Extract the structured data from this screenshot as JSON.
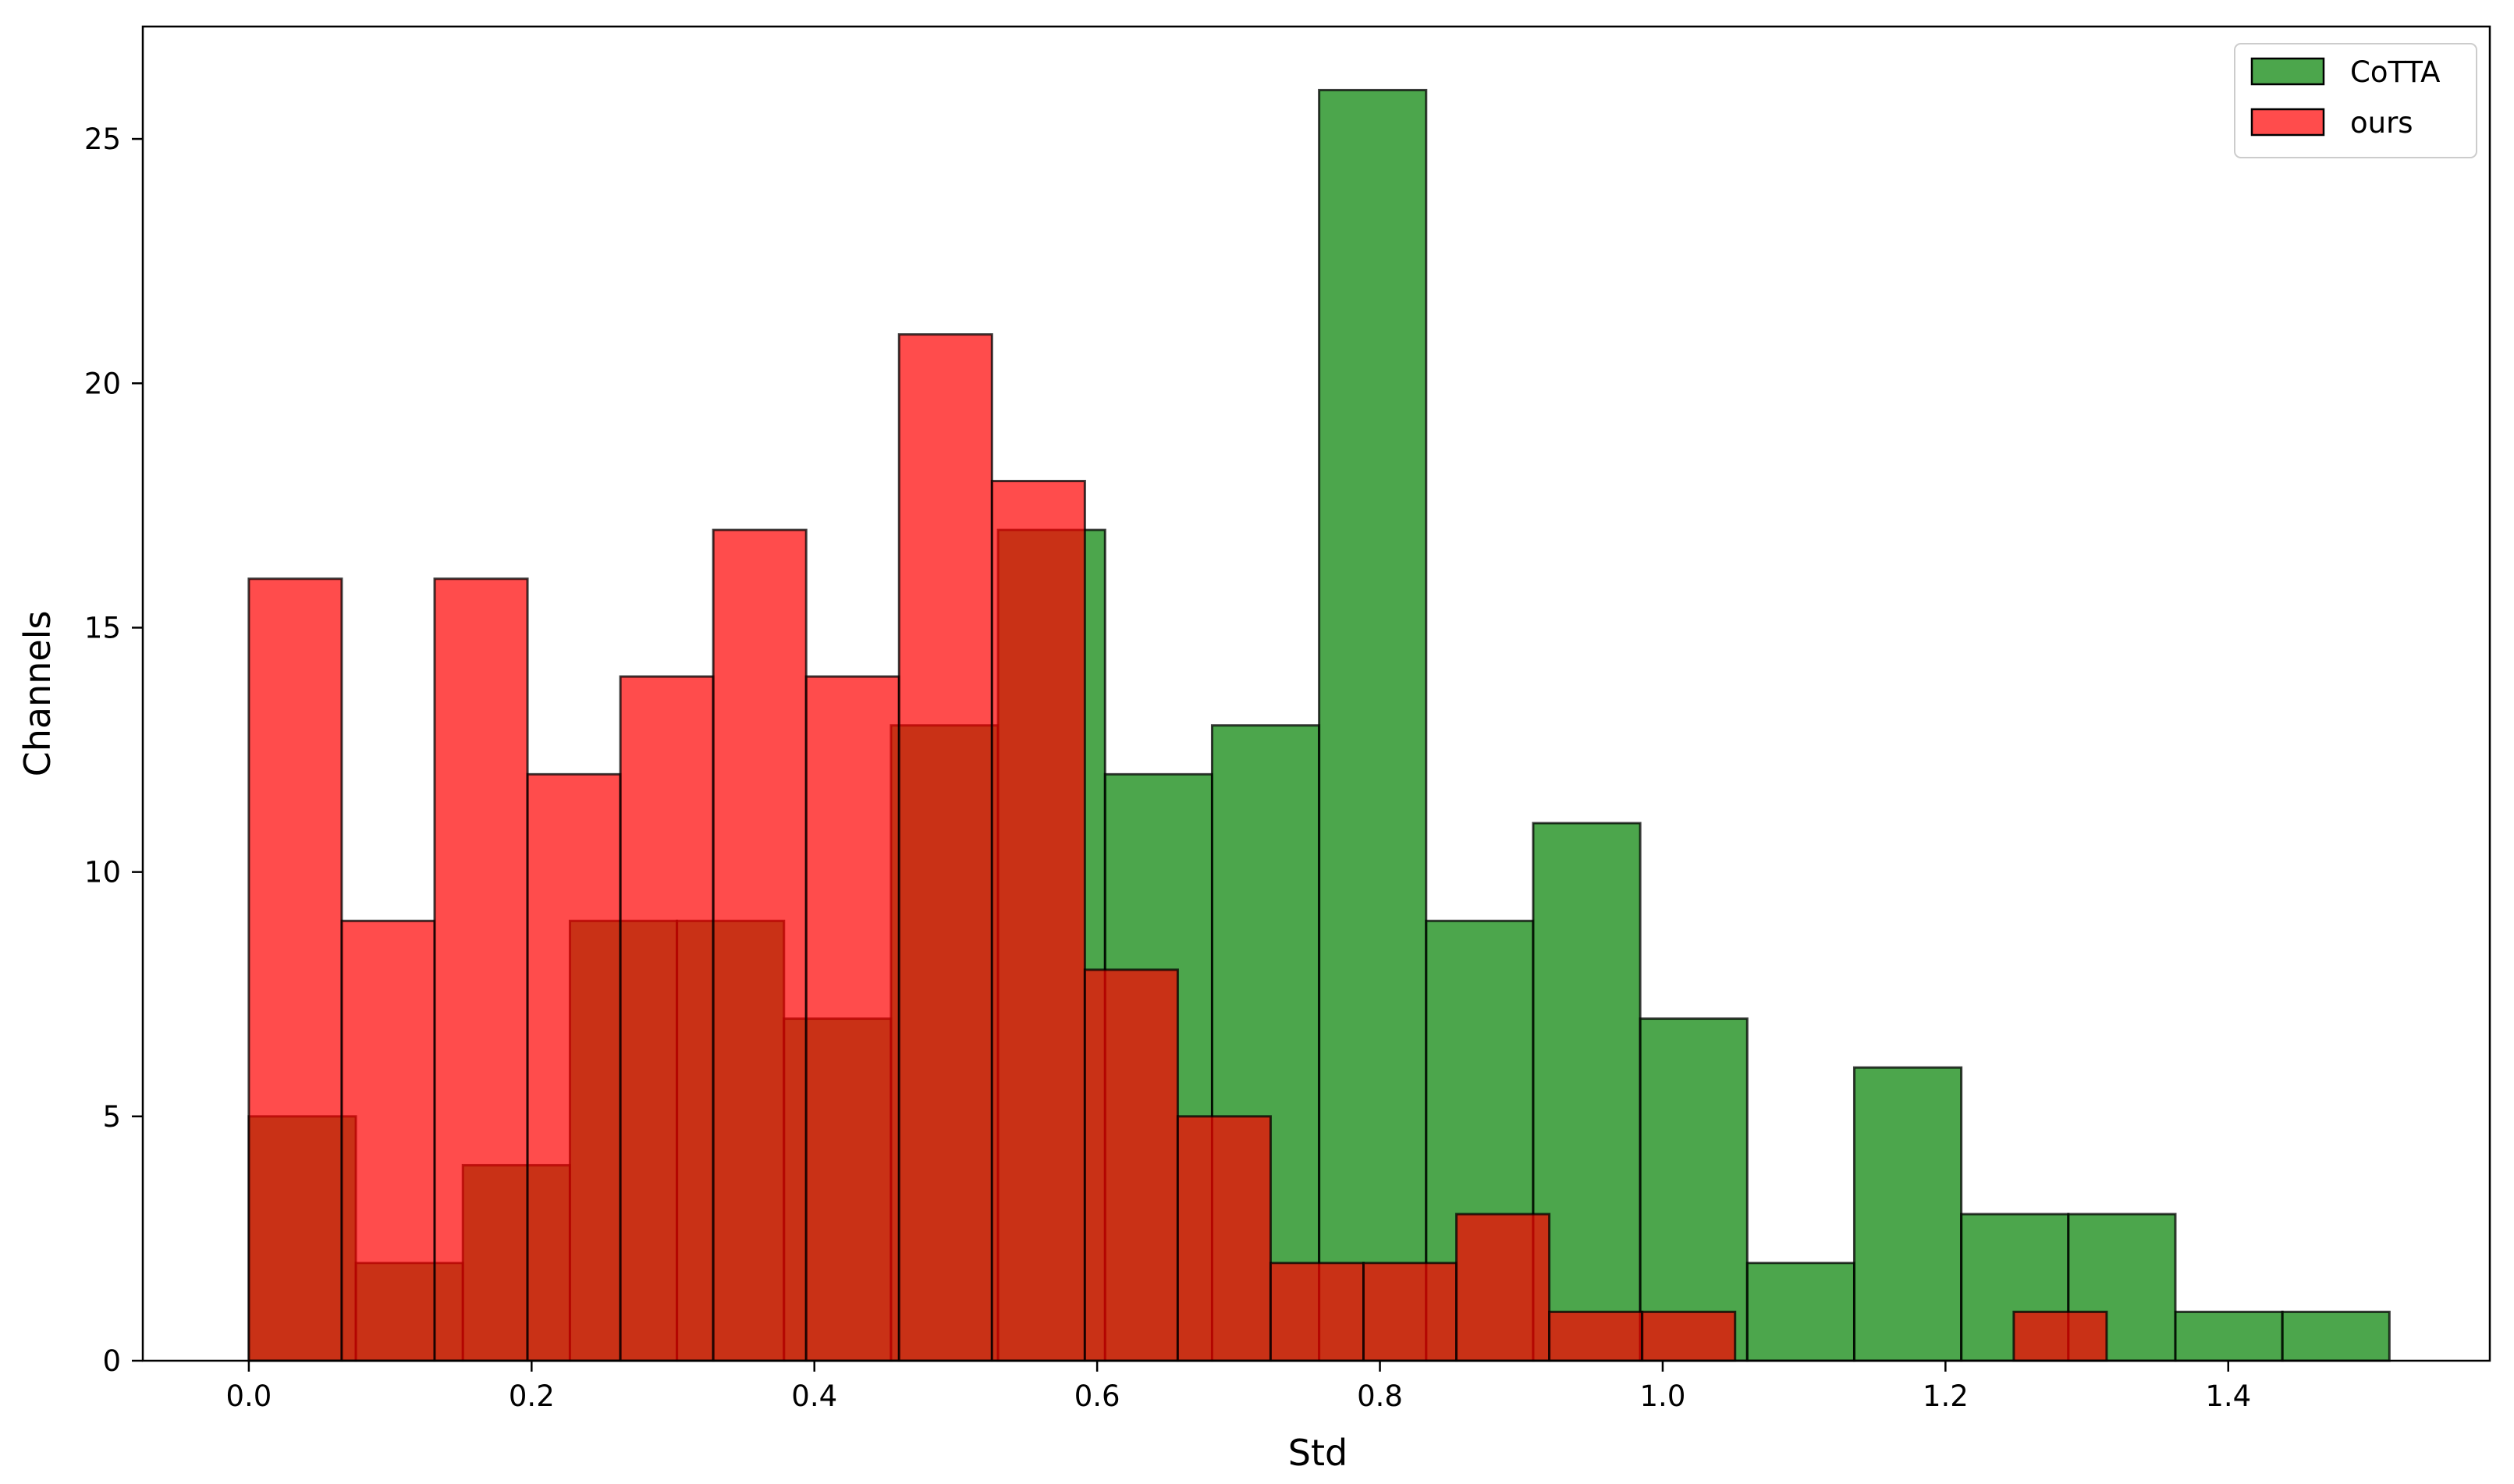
{
  "chart_data": {
    "type": "bar",
    "subtype": "overlapping-histogram",
    "title": "",
    "xlabel": "Std",
    "ylabel": "Channels",
    "xlim": [
      -0.075,
      1.585
    ],
    "ylim": [
      0,
      27.3
    ],
    "xticks": [
      0.0,
      0.2,
      0.4,
      0.6,
      0.8,
      1.0,
      1.2,
      1.4
    ],
    "xtick_labels": [
      "0.0",
      "0.2",
      "0.4",
      "0.6",
      "0.8",
      "1.0",
      "1.2",
      "1.4"
    ],
    "yticks": [
      0,
      5,
      10,
      15,
      20,
      25
    ],
    "ytick_labels": [
      "0",
      "5",
      "10",
      "15",
      "20",
      "25"
    ],
    "grid": false,
    "legend_position": "top-right",
    "series": [
      {
        "name": "CoTTA",
        "color": "#008000",
        "alpha": 0.7,
        "edge_color": "#000000",
        "bin_edges": [
          0.0,
          0.0757,
          0.1514,
          0.2271,
          0.3028,
          0.3785,
          0.4542,
          0.5299,
          0.6056,
          0.6813,
          0.757,
          0.8327,
          0.9084,
          0.9841,
          1.0598,
          1.1355,
          1.2112,
          1.2869,
          1.3626,
          1.4383,
          1.514
        ],
        "values": [
          5,
          2,
          4,
          9,
          9,
          7,
          13,
          17,
          12,
          13,
          26,
          9,
          11,
          7,
          2,
          6,
          3,
          3,
          1,
          1
        ]
      },
      {
        "name": "ours",
        "color": "#ff0000",
        "alpha": 0.7,
        "edge_color": "#000000",
        "bin_edges": [
          0.0,
          0.0657,
          0.1314,
          0.1971,
          0.2628,
          0.3285,
          0.3942,
          0.4599,
          0.5256,
          0.5913,
          0.657,
          0.7227,
          0.7884,
          0.8541,
          0.9198,
          0.9855,
          1.0512,
          1.1169,
          1.1826,
          1.2483,
          1.314
        ],
        "values": [
          16,
          9,
          16,
          12,
          14,
          17,
          14,
          21,
          18,
          8,
          5,
          2,
          2,
          3,
          1,
          1,
          0,
          0,
          0,
          1
        ]
      }
    ]
  }
}
